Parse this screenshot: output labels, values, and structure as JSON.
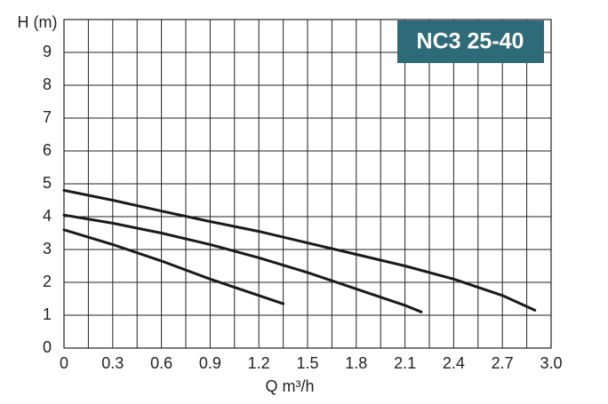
{
  "chart_data": {
    "type": "line",
    "title": "NC3 25-40",
    "x_label": "Q m³/h",
    "y_label": "H (m)",
    "xlim": [
      0,
      3
    ],
    "ylim": [
      0,
      10
    ],
    "xticks": [
      0,
      0.3,
      0.6,
      0.9,
      1.2,
      1.5,
      1.8,
      2.1,
      2.4,
      2.7,
      {
        "value": 3,
        "label": "3.0"
      }
    ],
    "xminorticks": [
      0.15,
      0.45,
      0.75,
      1.05,
      1.35,
      1.65,
      1.95,
      2.25,
      2.55,
      2.85
    ],
    "yticks": [
      0,
      1,
      2,
      3,
      4,
      5,
      6,
      7,
      8,
      9
    ],
    "grid": true,
    "title_color": "#2e6b78",
    "series": [
      {
        "color": "#1a1a1a",
        "x": [
          0,
          0.3,
          0.6,
          0.9,
          1.2,
          1.5,
          1.8,
          2.1,
          2.4,
          2.7,
          2.9
        ],
        "values": [
          4.8,
          4.5,
          4.17,
          3.85,
          3.55,
          3.2,
          2.85,
          2.5,
          2.1,
          1.6,
          1.15
        ]
      },
      {
        "color": "#1a1a1a",
        "x": [
          0,
          0.3,
          0.6,
          0.9,
          1.2,
          1.5,
          1.8,
          2.1,
          2.2
        ],
        "values": [
          4.05,
          3.8,
          3.5,
          3.15,
          2.75,
          2.3,
          1.8,
          1.3,
          1.1
        ]
      },
      {
        "color": "#1a1a1a",
        "x": [
          0,
          0.3,
          0.6,
          0.9,
          1.2,
          1.35
        ],
        "values": [
          3.6,
          3.15,
          2.65,
          2.1,
          1.6,
          1.35
        ]
      }
    ]
  }
}
